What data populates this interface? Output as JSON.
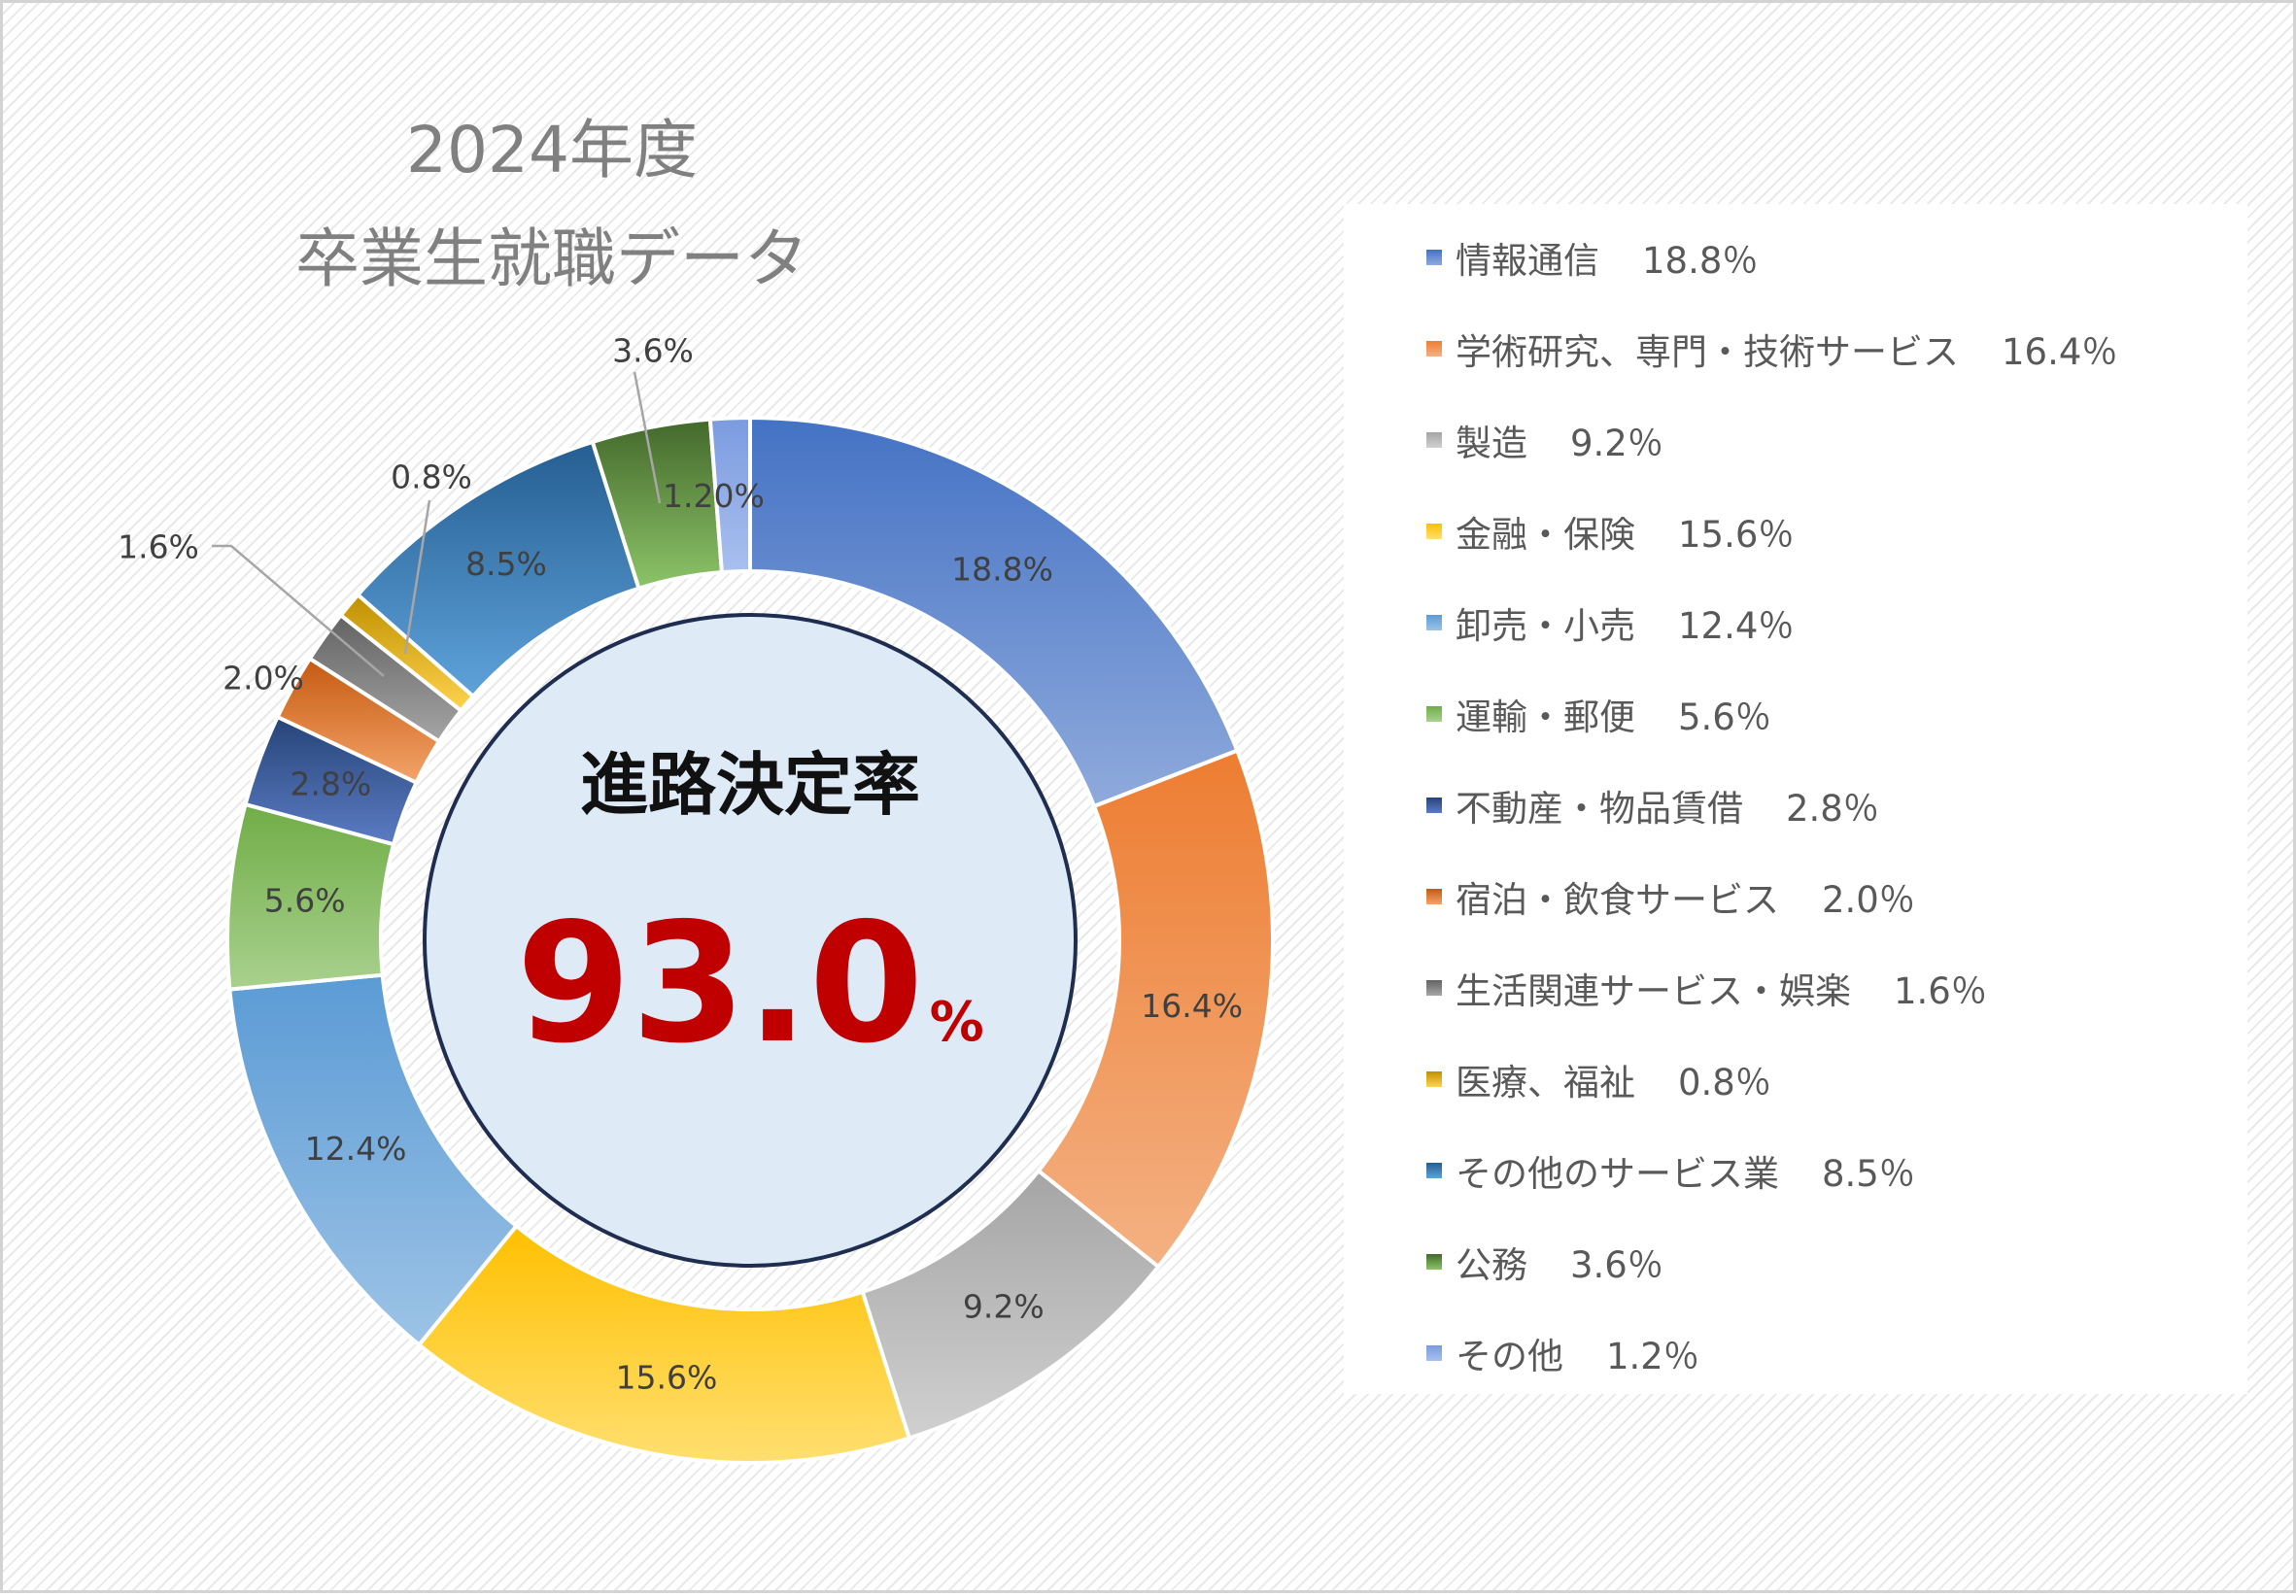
{
  "title": {
    "line1": "2024年度",
    "line2": "卒業生就職データ"
  },
  "center": {
    "title": "進路決定率",
    "value": "93.0",
    "unit": "%"
  },
  "chart_data": {
    "type": "pie",
    "title": "2024年度 卒業生就職データ",
    "legend_position": "right",
    "slices": [
      {
        "name": "情報通信",
        "value": 18.8,
        "label": "18.8%",
        "legend_value": "18.8％",
        "color": "#4472c4",
        "color_light": "#8faadc"
      },
      {
        "name": "学術研究、専門・技術サービス",
        "value": 16.4,
        "label": "16.4%",
        "legend_value": "16.4％",
        "color": "#ed7d31",
        "color_light": "#f4b183"
      },
      {
        "name": "製造",
        "value": 9.2,
        "label": "9.2%",
        "legend_value": "9.2％",
        "color": "#a5a5a5",
        "color_light": "#d0d0d0"
      },
      {
        "name": "金融・保険",
        "value": 15.6,
        "label": "15.6%",
        "legend_value": "15.6％",
        "color": "#ffc000",
        "color_light": "#ffdf70"
      },
      {
        "name": "卸売・小売",
        "value": 12.4,
        "label": "12.4%",
        "legend_value": "12.4％",
        "color": "#5b9bd5",
        "color_light": "#9dc3e6"
      },
      {
        "name": "運輸・郵便",
        "value": 5.6,
        "label": "5.6%",
        "legend_value": "5.6％",
        "color": "#70ad47",
        "color_light": "#a9d18e"
      },
      {
        "name": "不動産・物品賃借",
        "value": 2.8,
        "label": "2.8%",
        "legend_value": "2.8％",
        "color": "#264478",
        "color_light": "#5b7cc4"
      },
      {
        "name": "宿泊・飲食サービス",
        "value": 2.0,
        "label": "2.0%",
        "legend_value": "2.0％",
        "color": "#c55a11",
        "color_light": "#f4a46a"
      },
      {
        "name": "生活関連サービス・娯楽",
        "value": 1.6,
        "label": "1.6%",
        "legend_value": "1.6％",
        "color": "#636363",
        "color_light": "#a5a5a5"
      },
      {
        "name": "医療、福祉",
        "value": 0.8,
        "label": "0.8%",
        "legend_value": "0.8％",
        "color": "#bf9000",
        "color_light": "#ffd34d"
      },
      {
        "name": "その他のサービス業",
        "value": 8.5,
        "label": "8.5%",
        "legend_value": "8.5％",
        "color": "#255e91",
        "color_light": "#5ea2da"
      },
      {
        "name": "公務",
        "value": 3.6,
        "label": "3.6%",
        "legend_value": "3.6％",
        "color": "#43682b",
        "color_light": "#8cc468"
      },
      {
        "name": "その他",
        "value": 1.2,
        "label": "1.20%",
        "legend_value": "1.2％",
        "color": "#7b9be0",
        "color_light": "#a9c0ef"
      }
    ]
  }
}
